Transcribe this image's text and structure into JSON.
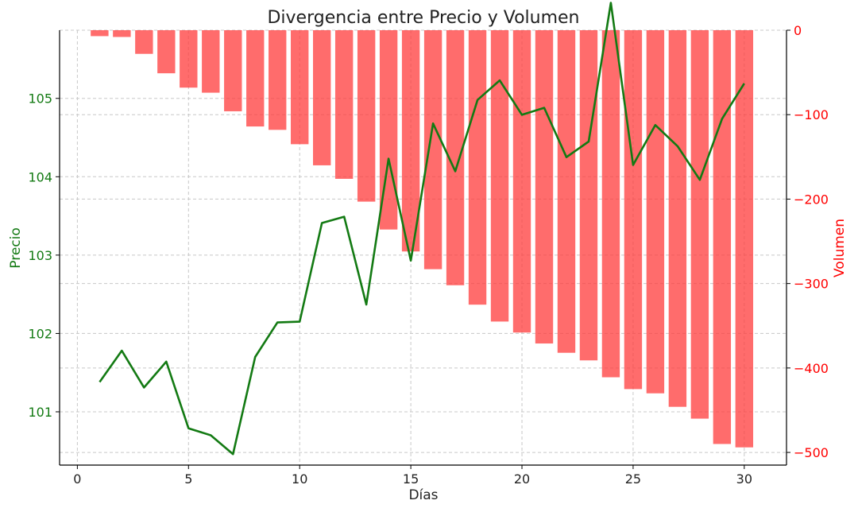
{
  "chart_data": {
    "type": "bar+line",
    "title": "Divergencia entre Precio y Volumen",
    "xlabel": "Días",
    "ylabel_left": "Precio",
    "ylabel_right": "Volumen",
    "xlim": [
      -0.8,
      31.9
    ],
    "x_ticks": [
      0,
      5,
      10,
      15,
      20,
      25,
      30
    ],
    "price_ylim": [
      100.32,
      105.87
    ],
    "price_ticks": [
      101,
      102,
      103,
      104,
      105
    ],
    "volume_ylim": [
      -515,
      0
    ],
    "volume_ticks": [
      0,
      -100,
      -200,
      -300,
      -400,
      -500
    ],
    "grid": true,
    "colors": {
      "price": "#137a13",
      "volume": "#ff3b3b",
      "price_axis": "#137a13",
      "volume_axis": "#ff0000"
    },
    "x": [
      1,
      2,
      3,
      4,
      5,
      6,
      7,
      8,
      9,
      10,
      11,
      12,
      13,
      14,
      15,
      16,
      17,
      18,
      19,
      20,
      21,
      22,
      23,
      24,
      25,
      26,
      27,
      28,
      29,
      30
    ],
    "series": [
      {
        "name": "Precio",
        "kind": "line",
        "axis": "left",
        "values": [
          101.38,
          101.78,
          101.31,
          101.64,
          100.79,
          100.7,
          100.46,
          101.7,
          102.14,
          102.15,
          103.41,
          103.49,
          102.37,
          104.23,
          102.93,
          104.68,
          104.07,
          104.98,
          105.23,
          104.79,
          104.88,
          104.25,
          104.45,
          106.22,
          104.15,
          104.66,
          104.39,
          103.96,
          104.74,
          105.19
        ]
      },
      {
        "name": "Volumen",
        "kind": "bar",
        "axis": "right",
        "values": [
          -7,
          -8,
          -28,
          -51,
          -68,
          -74,
          -96,
          -114,
          -118,
          -135,
          -160,
          -176,
          -203,
          -236,
          -262,
          -283,
          -302,
          -325,
          -345,
          -358,
          -371,
          -382,
          -391,
          -411,
          -425,
          -430,
          -446,
          -460,
          -490,
          -494
        ]
      }
    ]
  }
}
